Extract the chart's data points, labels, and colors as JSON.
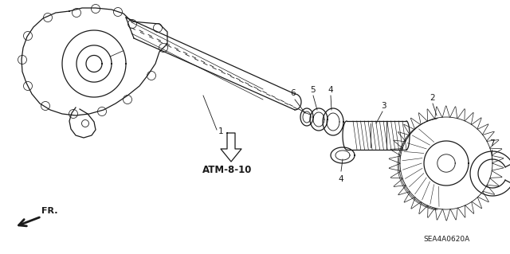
{
  "bg_color": "#ffffff",
  "part_code": "SEA4A0620A",
  "atm_label": "ATM-8-10",
  "fr_label": "FR.",
  "line_color": "#1a1a1a",
  "label_fontsize": 7.5,
  "atm_fontsize": 8.5,
  "code_fontsize": 6.5,
  "fig_width": 6.4,
  "fig_height": 3.19,
  "dpi": 100
}
